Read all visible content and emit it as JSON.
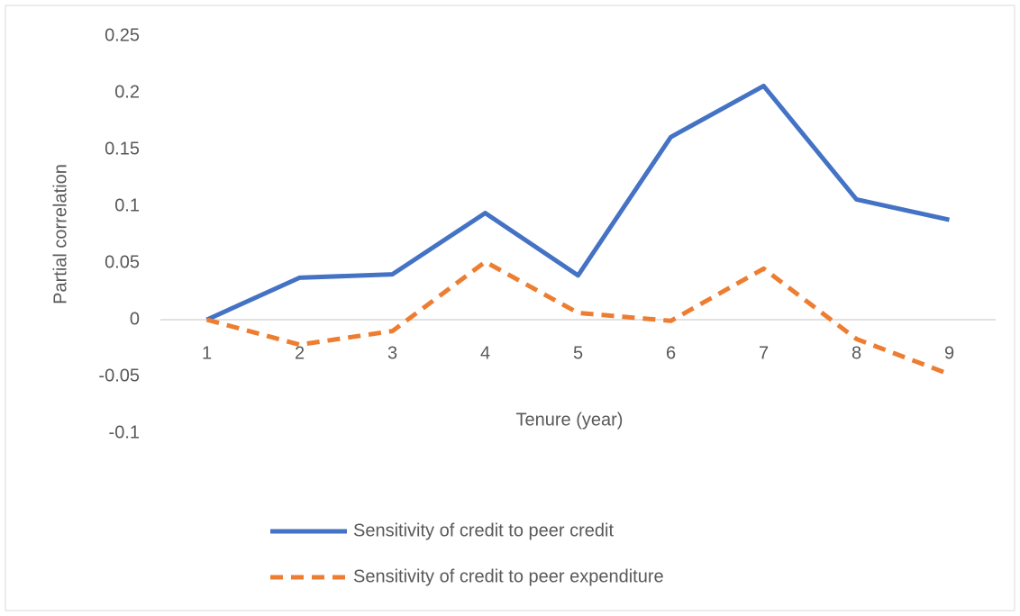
{
  "chart_data": {
    "type": "line",
    "x_label": "Tenure (year)",
    "y_label": "Partial correlation",
    "categories": [
      "1",
      "2",
      "3",
      "4",
      "5",
      "6",
      "7",
      "8",
      "9"
    ],
    "series": [
      {
        "name": "Sensitivity of credit to peer credit",
        "color": "#4472c4",
        "dash": false,
        "values": [
          0,
          0.037,
          0.04,
          0.094,
          0.039,
          0.161,
          0.206,
          0.106,
          0.088
        ]
      },
      {
        "name": "Sensitivity of credit to peer expenditure",
        "color": "#ed7d31",
        "dash": true,
        "values": [
          0,
          -0.022,
          -0.01,
          0.051,
          0.006,
          -0.001,
          0.045,
          -0.017,
          -0.048
        ]
      }
    ],
    "ylim": [
      -0.1,
      0.25
    ],
    "yticks": [
      -0.1,
      -0.05,
      0,
      0.05,
      0.1,
      0.15,
      0.2,
      0.25
    ],
    "grid": false,
    "legend": "bottom"
  }
}
